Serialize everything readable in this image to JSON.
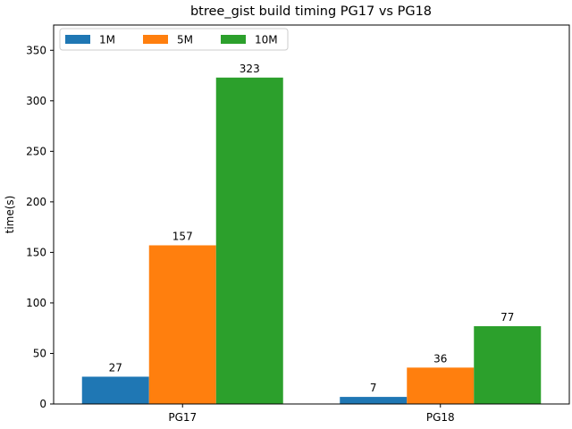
{
  "chart_data": {
    "type": "bar",
    "title": "btree_gist build timing PG17 vs PG18",
    "xlabel": "",
    "ylabel": "time(s)",
    "categories": [
      "PG17",
      "PG18"
    ],
    "series": [
      {
        "name": "1M",
        "values": [
          27,
          7
        ],
        "color": "#1f77b4"
      },
      {
        "name": "5M",
        "values": [
          157,
          36
        ],
        "color": "#ff7f0e"
      },
      {
        "name": "10M",
        "values": [
          323,
          77
        ],
        "color": "#2ca02c"
      }
    ],
    "ylim": [
      0,
      375
    ],
    "yticks": [
      0,
      50,
      100,
      150,
      200,
      250,
      300,
      350
    ],
    "legend_position": "top-left",
    "grid": false
  }
}
